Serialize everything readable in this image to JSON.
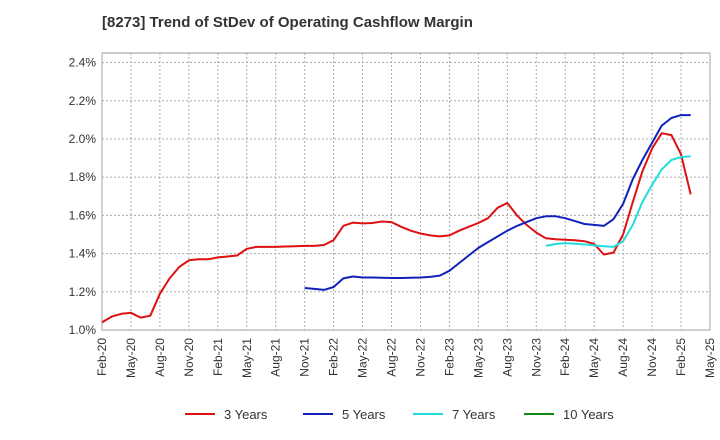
{
  "chart_data": {
    "type": "line",
    "title": "[8273]  Trend of StDev of Operating Cashflow Margin",
    "xlabel": "",
    "ylabel": "",
    "y_ticks": [
      "1.0%",
      "1.2%",
      "1.4%",
      "1.6%",
      "1.8%",
      "2.0%",
      "2.2%",
      "2.4%"
    ],
    "ylim": [
      1.0,
      2.45
    ],
    "x_ticks": [
      "Feb-20",
      "May-20",
      "Aug-20",
      "Nov-20",
      "Feb-21",
      "May-21",
      "Aug-21",
      "Nov-21",
      "Feb-22",
      "May-22",
      "Aug-22",
      "Nov-22",
      "Feb-23",
      "May-23",
      "Aug-23",
      "Nov-23",
      "Feb-24",
      "May-24",
      "Aug-24",
      "Nov-24",
      "Feb-25",
      "May-25"
    ],
    "x_range_months": [
      0,
      63
    ],
    "grid": true,
    "legend_position": "bottom",
    "series": [
      {
        "name": "3 Years",
        "color": "#dd1111",
        "points": [
          [
            0,
            1.04
          ],
          [
            1,
            1.07
          ],
          [
            2,
            1.085
          ],
          [
            3,
            1.09
          ],
          [
            4,
            1.065
          ],
          [
            5,
            1.075
          ],
          [
            6,
            1.19
          ],
          [
            7,
            1.27
          ],
          [
            8,
            1.33
          ],
          [
            9,
            1.365
          ],
          [
            10,
            1.37
          ],
          [
            11,
            1.37
          ],
          [
            12,
            1.38
          ],
          [
            13,
            1.385
          ],
          [
            14,
            1.39
          ],
          [
            15,
            1.425
          ],
          [
            16,
            1.435
          ],
          [
            17,
            1.435
          ],
          [
            18,
            1.435
          ],
          [
            19,
            1.437
          ],
          [
            20,
            1.438
          ],
          [
            21,
            1.44
          ],
          [
            22,
            1.44
          ],
          [
            23,
            1.445
          ],
          [
            24,
            1.47
          ],
          [
            25,
            1.545
          ],
          [
            26,
            1.562
          ],
          [
            27,
            1.558
          ],
          [
            28,
            1.56
          ],
          [
            29,
            1.568
          ],
          [
            30,
            1.565
          ],
          [
            31,
            1.54
          ],
          [
            32,
            1.52
          ],
          [
            33,
            1.505
          ],
          [
            34,
            1.495
          ],
          [
            35,
            1.49
          ],
          [
            36,
            1.495
          ],
          [
            37,
            1.52
          ],
          [
            38,
            1.54
          ],
          [
            39,
            1.56
          ],
          [
            40,
            1.585
          ],
          [
            41,
            1.64
          ],
          [
            42,
            1.665
          ],
          [
            43,
            1.6
          ],
          [
            44,
            1.55
          ],
          [
            45,
            1.51
          ],
          [
            46,
            1.48
          ],
          [
            47,
            1.475
          ],
          [
            48,
            1.472
          ],
          [
            49,
            1.47
          ],
          [
            50,
            1.465
          ],
          [
            51,
            1.45
          ],
          [
            52,
            1.395
          ],
          [
            53,
            1.405
          ],
          [
            54,
            1.5
          ],
          [
            55,
            1.67
          ],
          [
            56,
            1.83
          ],
          [
            57,
            1.95
          ],
          [
            58,
            2.03
          ],
          [
            59,
            2.02
          ],
          [
            60,
            1.92
          ],
          [
            61,
            1.71
          ]
        ]
      },
      {
        "name": "5 Years",
        "color": "#1122bb",
        "points": [
          [
            21,
            1.22
          ],
          [
            22,
            1.215
          ],
          [
            23,
            1.21
          ],
          [
            24,
            1.225
          ],
          [
            25,
            1.27
          ],
          [
            26,
            1.28
          ],
          [
            27,
            1.275
          ],
          [
            28,
            1.275
          ],
          [
            29,
            1.273
          ],
          [
            30,
            1.272
          ],
          [
            31,
            1.272
          ],
          [
            32,
            1.273
          ],
          [
            33,
            1.275
          ],
          [
            34,
            1.278
          ],
          [
            35,
            1.285
          ],
          [
            36,
            1.31
          ],
          [
            37,
            1.35
          ],
          [
            38,
            1.39
          ],
          [
            39,
            1.43
          ],
          [
            40,
            1.46
          ],
          [
            41,
            1.49
          ],
          [
            42,
            1.52
          ],
          [
            43,
            1.545
          ],
          [
            44,
            1.565
          ],
          [
            45,
            1.585
          ],
          [
            46,
            1.595
          ],
          [
            47,
            1.595
          ],
          [
            48,
            1.585
          ],
          [
            49,
            1.57
          ],
          [
            50,
            1.555
          ],
          [
            51,
            1.55
          ],
          [
            52,
            1.545
          ],
          [
            53,
            1.58
          ],
          [
            54,
            1.66
          ],
          [
            55,
            1.79
          ],
          [
            56,
            1.89
          ],
          [
            57,
            1.98
          ],
          [
            58,
            2.07
          ],
          [
            59,
            2.11
          ],
          [
            60,
            2.125
          ],
          [
            61,
            2.125
          ]
        ]
      },
      {
        "name": "7 Years",
        "color": "#22dddd",
        "points": [
          [
            46,
            1.44
          ],
          [
            47,
            1.45
          ],
          [
            48,
            1.455
          ],
          [
            49,
            1.452
          ],
          [
            50,
            1.448
          ],
          [
            51,
            1.443
          ],
          [
            52,
            1.438
          ],
          [
            53,
            1.435
          ],
          [
            54,
            1.465
          ],
          [
            55,
            1.55
          ],
          [
            56,
            1.67
          ],
          [
            57,
            1.76
          ],
          [
            58,
            1.84
          ],
          [
            59,
            1.89
          ],
          [
            60,
            1.905
          ],
          [
            61,
            1.91
          ]
        ]
      },
      {
        "name": "10 Years",
        "color": "#118811",
        "points": []
      }
    ]
  }
}
